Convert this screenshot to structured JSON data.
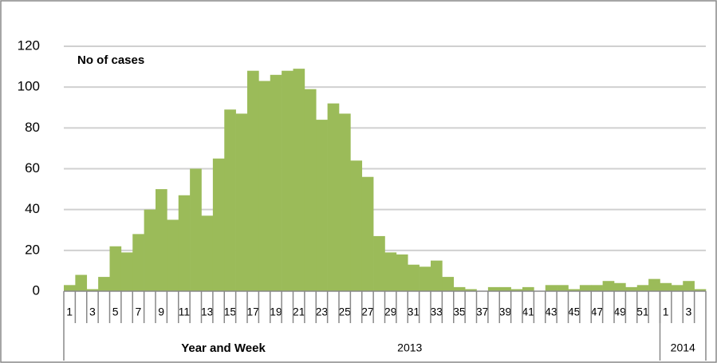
{
  "chart_data": {
    "type": "bar",
    "annotation": "No of cases",
    "x_label": "Year and Week",
    "year_labels": [
      "2013",
      "2014"
    ],
    "categories": [
      "1",
      null,
      "3",
      null,
      "5",
      null,
      "7",
      null,
      "9",
      null,
      "11",
      null,
      "13",
      null,
      "15",
      null,
      "17",
      null,
      "19",
      null,
      "21",
      null,
      "23",
      null,
      "25",
      null,
      "27",
      null,
      "29",
      null,
      "31",
      null,
      "33",
      null,
      "35",
      null,
      "37",
      null,
      "39",
      null,
      "41",
      null,
      "43",
      null,
      "45",
      null,
      "47",
      null,
      "49",
      null,
      "51",
      null,
      "1",
      null,
      "3",
      null
    ],
    "values": [
      3,
      8,
      1,
      7,
      22,
      19,
      28,
      40,
      50,
      35,
      47,
      60,
      37,
      65,
      89,
      87,
      108,
      103,
      106,
      108,
      109,
      99,
      84,
      92,
      87,
      64,
      56,
      27,
      19,
      18,
      13,
      12,
      15,
      7,
      2,
      1,
      0,
      2,
      2,
      1,
      2,
      0,
      3,
      3,
      1,
      3,
      3,
      5,
      4,
      2,
      3,
      6,
      4,
      3,
      5,
      1
    ],
    "color": "#9bbb59",
    "ylim": [
      0,
      120
    ],
    "yticks": [
      0,
      20,
      40,
      60,
      80,
      100,
      120
    ],
    "grid": true
  }
}
